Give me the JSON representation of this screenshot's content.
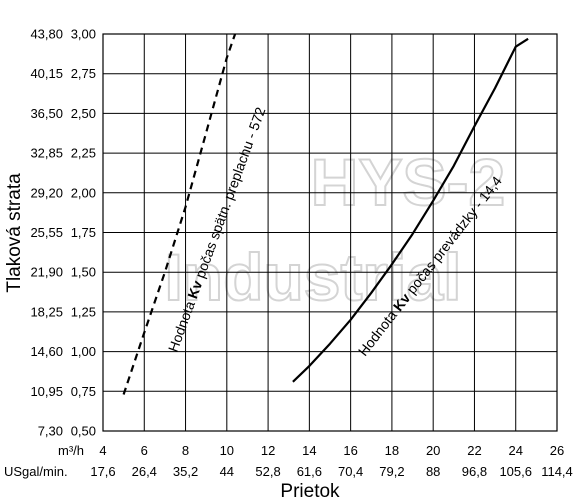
{
  "chart_data": {
    "type": "line",
    "xlabel": "Prietok",
    "ylabel": "Tlaková strata",
    "x_unit_primary": "m³/h",
    "x_unit_secondary": "USgal/min.",
    "x_ticks": [
      4,
      6,
      8,
      10,
      12,
      14,
      16,
      18,
      20,
      22,
      24,
      26
    ],
    "x_ticks_secondary": [
      "17,6",
      "26,4",
      "35,2",
      "44",
      "52,8",
      "61,6",
      "70,4",
      "79,2",
      "88",
      "96,8",
      "105,6",
      "114,4"
    ],
    "xlim": [
      4,
      26
    ],
    "y_ticks": [
      "0,50",
      "0,75",
      "1,00",
      "1,25",
      "1,50",
      "1,75",
      "2,00",
      "2,25",
      "2,50",
      "2,75",
      "3,00"
    ],
    "y_ticks_secondary": [
      "7,30",
      "10,95",
      "14,60",
      "18,25",
      "21,90",
      "25,55",
      "29,20",
      "32,85",
      "36,50",
      "40,15",
      "43,80"
    ],
    "ylim": [
      0.5,
      3.0
    ],
    "grid": true,
    "series": [
      {
        "name": "Hodnota Kv počas spätn. preplachu - 572",
        "label_pre": "Hodnota ",
        "label_bold": "Kv",
        "label_post": " počas spätn. preplachu - 572",
        "style": "dashed",
        "x": [
          5.0,
          6.0,
          7.0,
          8.0,
          9.0,
          10.0,
          10.4
        ],
        "y": [
          0.73,
          1.12,
          1.5,
          1.91,
          2.38,
          2.85,
          3.0
        ]
      },
      {
        "name": "Hodnota Kv počas prevádzky - 14,4",
        "label_pre": "Hodnota ",
        "label_bold": "Kv",
        "label_post": " počas prevádzky - 14,4",
        "style": "solid",
        "x": [
          13.2,
          14.0,
          15.0,
          16.0,
          17.0,
          18.0,
          19.0,
          20.0,
          21.0,
          22.0,
          23.0,
          24.0,
          24.6
        ],
        "y": [
          0.81,
          0.91,
          1.05,
          1.2,
          1.37,
          1.55,
          1.74,
          1.95,
          2.17,
          2.42,
          2.66,
          2.92,
          2.97
        ]
      }
    ],
    "watermark": [
      "HYS-2",
      "Industrial"
    ],
    "colors": {
      "line": "#000000",
      "grid": "#000000",
      "watermark": "#d4d4d4"
    }
  }
}
